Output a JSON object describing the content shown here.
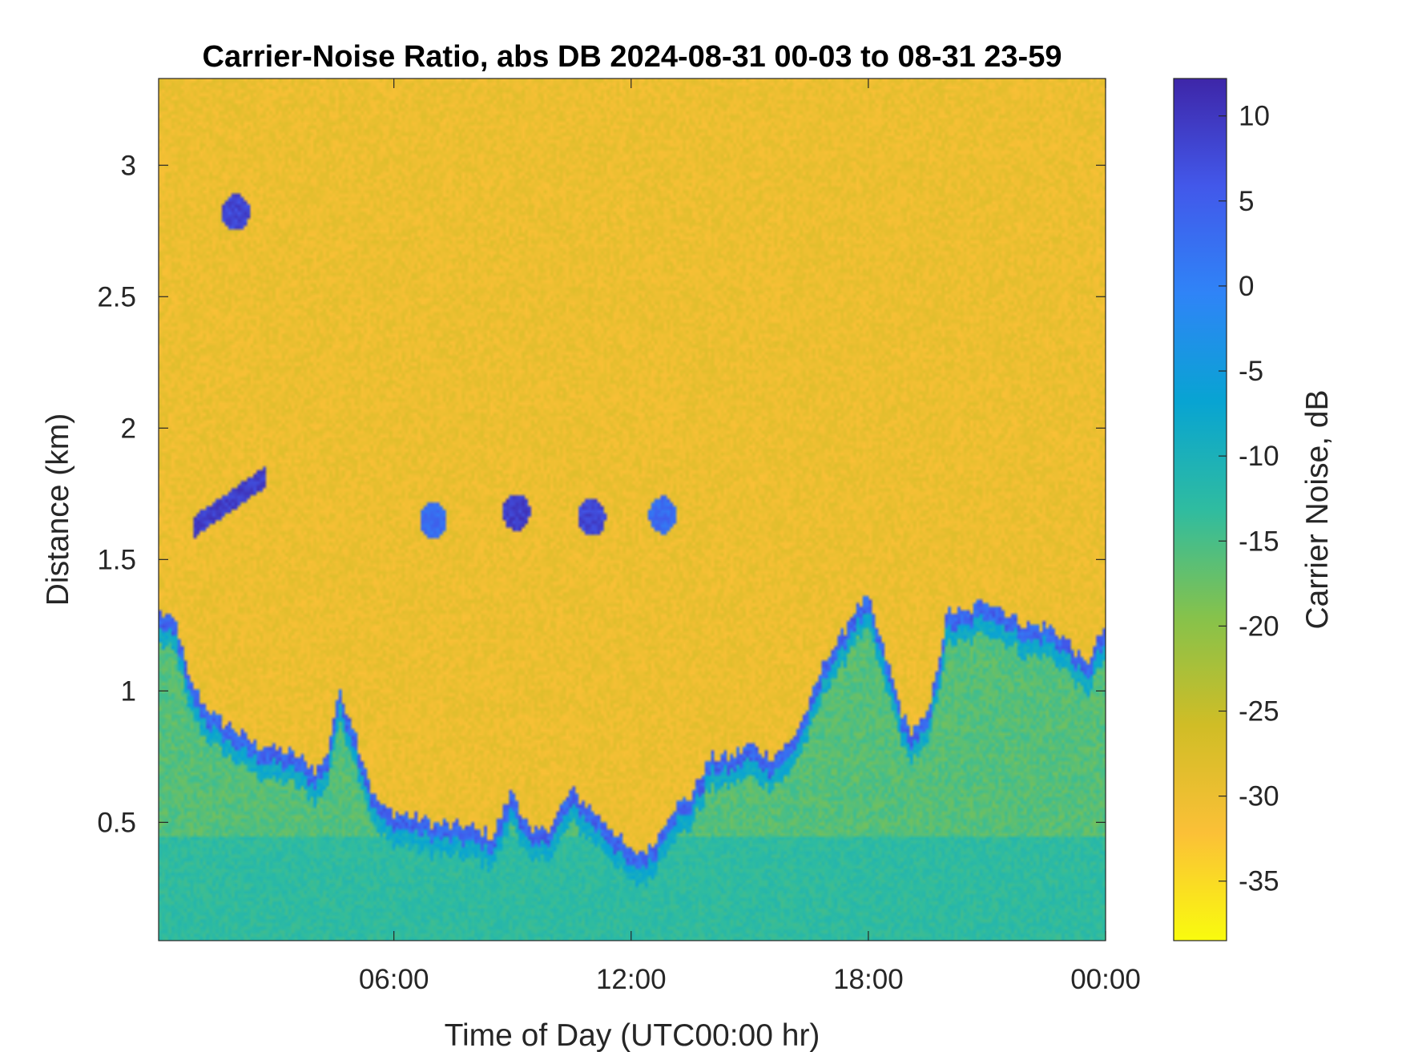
{
  "chart_data": {
    "type": "heatmap",
    "title": "Carrier-Noise Ratio, abs DB 2024-08-31 00-03 to 08-31 23-59",
    "xlabel": "Time of Day (UTC00:00 hr)",
    "ylabel": "Distance (km)",
    "colorbar_label": "Carrier Noise, dB",
    "xlim_hours": [
      0.05,
      24.0
    ],
    "ylim_km": [
      0.05,
      3.33
    ],
    "clim_db": [
      -38.5,
      12.2
    ],
    "x_ticks": [
      {
        "value": 6,
        "label": "06:00"
      },
      {
        "value": 12,
        "label": "12:00"
      },
      {
        "value": 18,
        "label": "18:00"
      },
      {
        "value": 24,
        "label": "00:00"
      }
    ],
    "y_ticks": [
      {
        "value": 0.5,
        "label": "0.5"
      },
      {
        "value": 1.0,
        "label": "1"
      },
      {
        "value": 1.5,
        "label": "1.5"
      },
      {
        "value": 2.0,
        "label": "2"
      },
      {
        "value": 2.5,
        "label": "2.5"
      },
      {
        "value": 3.0,
        "label": "3"
      }
    ],
    "colorbar_ticks": [
      {
        "value": 10,
        "label": "10"
      },
      {
        "value": 5,
        "label": "5"
      },
      {
        "value": 0,
        "label": "0"
      },
      {
        "value": -5,
        "label": "-5"
      },
      {
        "value": -10,
        "label": "-10"
      },
      {
        "value": -15,
        "label": "-15"
      },
      {
        "value": -20,
        "label": "-20"
      },
      {
        "value": -25,
        "label": "-25"
      },
      {
        "value": -30,
        "label": "-30"
      },
      {
        "value": -35,
        "label": "-35"
      }
    ],
    "colormap": "parula-reversed",
    "colormap_stops": [
      "#f9fb0e",
      "#fbc037",
      "#d0bd26",
      "#86c24b",
      "#2fbca0",
      "#08a4d2",
      "#2f84f7",
      "#4258ea",
      "#3e26a8"
    ],
    "background_db": -30,
    "boundary_layer_top_km": {
      "hours": [
        0.05,
        0.5,
        0.8,
        1.2,
        1.5,
        2.0,
        2.5,
        3.0,
        3.5,
        4.0,
        4.3,
        4.6,
        4.9,
        5.2,
        5.5,
        5.8,
        6.0,
        6.5,
        7.0,
        7.5,
        8.0,
        8.5,
        9.0,
        9.5,
        10.0,
        10.5,
        11.0,
        11.5,
        12.0,
        12.5,
        13.0,
        13.5,
        14.0,
        14.5,
        15.0,
        15.5,
        16.0,
        16.5,
        17.0,
        17.3,
        17.6,
        18.0,
        18.5,
        19.0,
        19.5,
        20.0,
        20.5,
        21.0,
        21.5,
        22.0,
        22.5,
        23.0,
        23.5,
        24.0
      ],
      "km": [
        1.3,
        1.26,
        1.05,
        0.95,
        0.9,
        0.85,
        0.8,
        0.78,
        0.76,
        0.7,
        0.75,
        1.0,
        0.9,
        0.75,
        0.6,
        0.55,
        0.54,
        0.52,
        0.5,
        0.49,
        0.48,
        0.45,
        0.62,
        0.45,
        0.5,
        0.62,
        0.55,
        0.48,
        0.38,
        0.4,
        0.55,
        0.6,
        0.75,
        0.75,
        0.8,
        0.75,
        0.8,
        0.95,
        1.15,
        1.2,
        1.3,
        1.35,
        1.1,
        0.85,
        0.9,
        1.3,
        1.3,
        1.35,
        1.3,
        1.25,
        1.25,
        1.2,
        1.1,
        1.25
      ]
    },
    "features": [
      {
        "name": "cloud",
        "hour": 2.0,
        "km": 2.82,
        "db": 8
      },
      {
        "name": "cloud-layer",
        "hours": [
          0.9,
          2.8
        ],
        "km": [
          1.62,
          1.82
        ],
        "db": 9
      },
      {
        "name": "cloud",
        "hour": 7.0,
        "km": 1.65,
        "db": 3
      },
      {
        "name": "cloud",
        "hour": 9.1,
        "km": 1.68,
        "db": 9
      },
      {
        "name": "cloud",
        "hour": 11.0,
        "km": 1.66,
        "db": 8
      },
      {
        "name": "cloud",
        "hour": 12.8,
        "km": 1.67,
        "db": 3
      }
    ]
  }
}
